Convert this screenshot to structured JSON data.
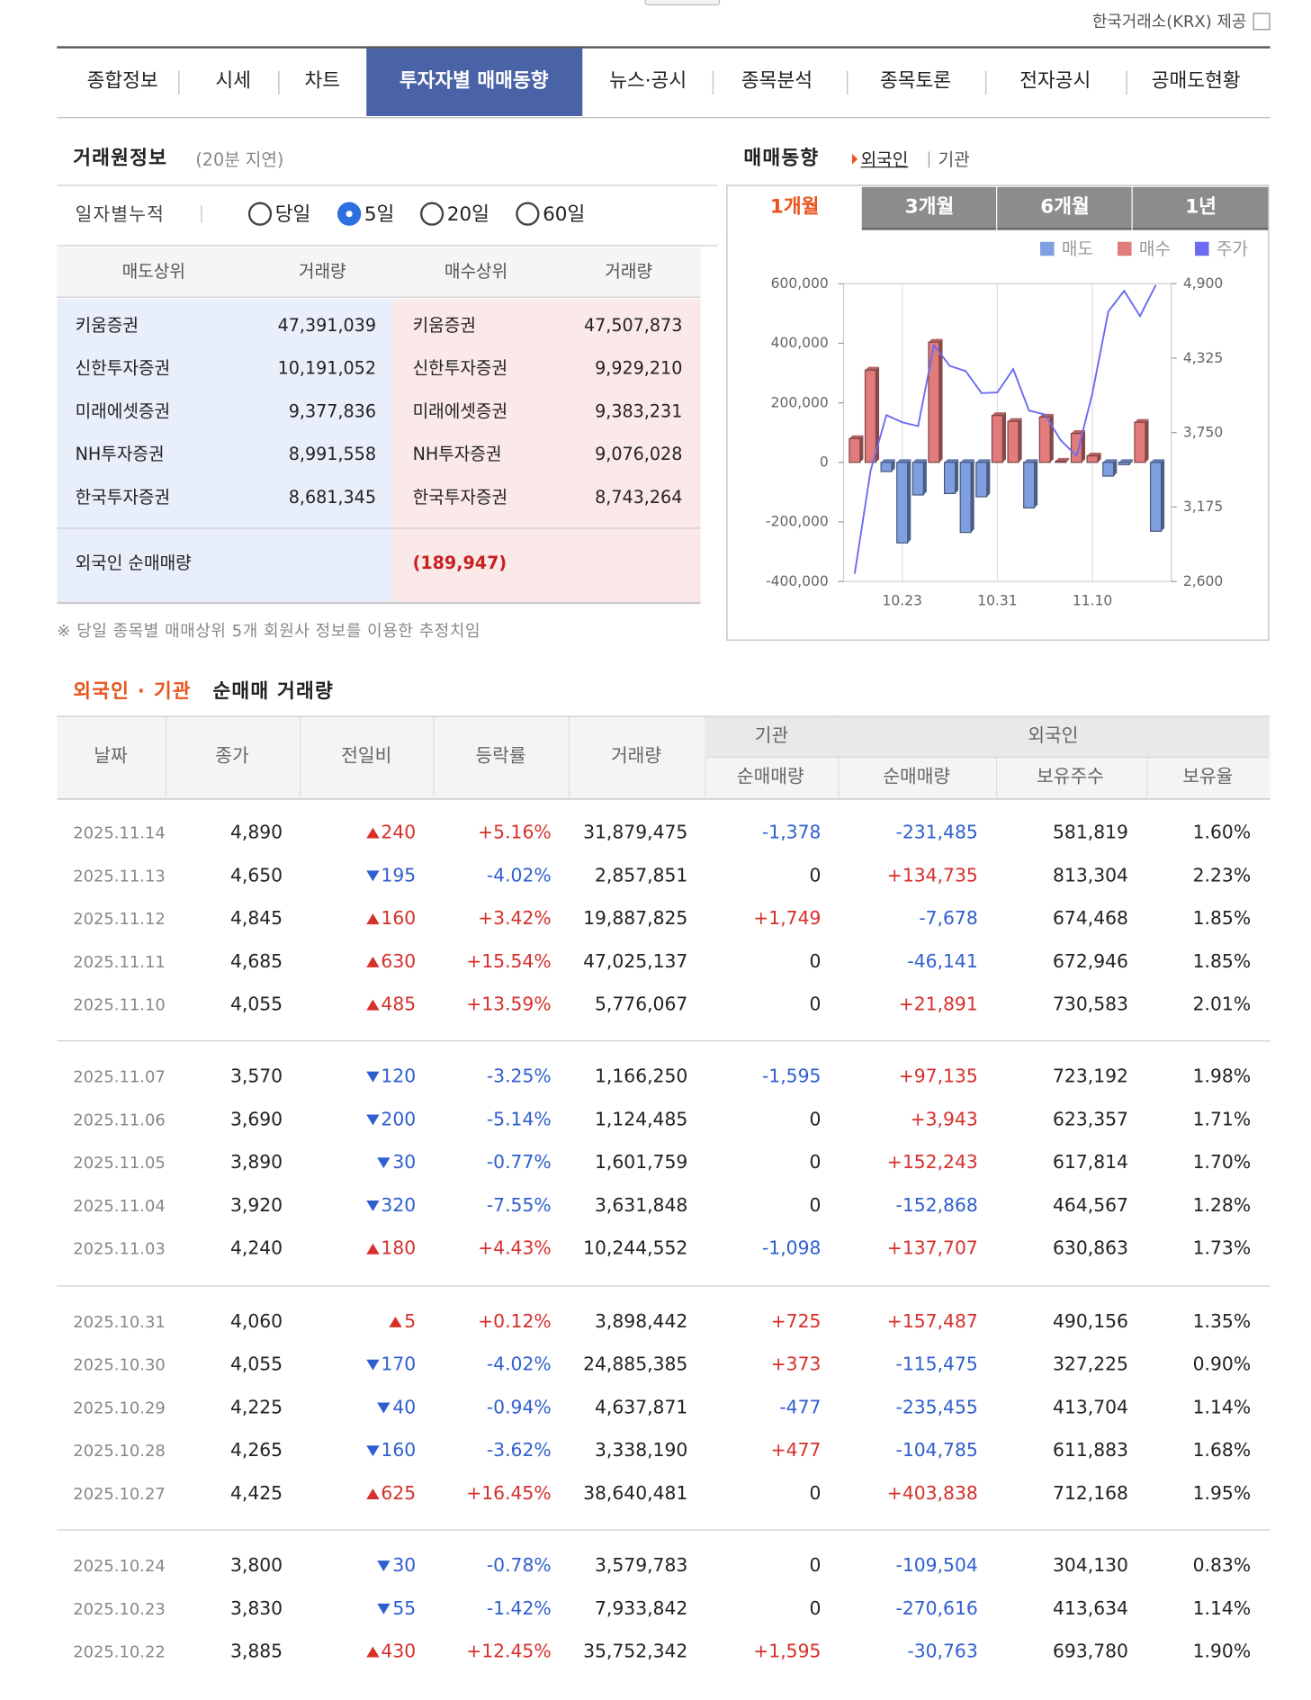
{
  "provider": "한국거래소(KRX) 제공",
  "tabs": [
    "종합정보",
    "시세",
    "차트",
    "투자자별 매매동향",
    "뉴스·공시",
    "종목분석",
    "종목토론",
    "전자공시",
    "공매도현황"
  ],
  "active_tab": 3,
  "trader_info": {
    "title": "거래원정보",
    "delay": "(20분 지연)",
    "filter_label": "일자별누적",
    "options": [
      "당일",
      "5일",
      "20일",
      "60일"
    ],
    "selected_option": 1,
    "headers": [
      "매도상위",
      "거래량",
      "매수상위",
      "거래량"
    ],
    "rows": [
      [
        "키움증권",
        "47,391,039",
        "키움증권",
        "47,507,873"
      ],
      [
        "신한투자증권",
        "10,191,052",
        "신한투자증권",
        "9,929,210"
      ],
      [
        "미래에셋증권",
        "9,377,836",
        "미래에셋증권",
        "9,383,231"
      ],
      [
        "NH투자증권",
        "8,991,558",
        "NH투자증권",
        "9,076,028"
      ],
      [
        "한국투자증권",
        "8,681,345",
        "한국투자증권",
        "8,743,264"
      ]
    ],
    "foreign_label": "외국인 순매매량",
    "foreign_value": "(189,947)",
    "note": "※ 당일 종목별 매매상위 5개 회원사 정보를 이용한 추정치임"
  },
  "trend": {
    "title": "매매동향",
    "links": [
      "외국인",
      "기관"
    ],
    "active_link": 0,
    "periods": [
      "1개월",
      "3개월",
      "6개월",
      "1년"
    ],
    "active_period": 0,
    "chart_data": {
      "type": "bar",
      "categories": [
        null,
        null,
        null,
        "10.23",
        null,
        null,
        null,
        null,
        null,
        "10.31",
        null,
        null,
        null,
        null,
        null,
        "11.10",
        null,
        null,
        null,
        null
      ],
      "series": [
        {
          "name": "매도",
          "color": "#7f9fe0",
          "values": [
            null,
            null,
            -30763,
            -270616,
            -109504,
            null,
            -104785,
            -235455,
            -115475,
            null,
            null,
            -152868,
            null,
            null,
            null,
            null,
            -46141,
            -7678,
            null,
            -231485
          ]
        },
        {
          "name": "매수",
          "color": "#e27b7b",
          "values": [
            80000,
            310000,
            null,
            null,
            null,
            403838,
            null,
            null,
            null,
            157487,
            137707,
            null,
            152243,
            3943,
            97135,
            21891,
            null,
            null,
            134735,
            null
          ]
        },
        {
          "name": "주가",
          "color": "#6b6bf2",
          "axis": "y2",
          "values": [
            2660,
            3455,
            3885,
            3830,
            3800,
            4425,
            4265,
            4225,
            4055,
            4060,
            4240,
            3920,
            3890,
            3690,
            3570,
            4055,
            4685,
            4845,
            4650,
            4890
          ]
        }
      ],
      "ylim": [
        -400000,
        600000
      ],
      "yticks": [
        {
          "value": -400000,
          "label": "-400,000"
        },
        {
          "value": -200000,
          "label": "-200,000"
        },
        0,
        {
          "value": 200000,
          "label": "200,000"
        },
        {
          "value": 400000,
          "label": "400,000"
        },
        {
          "value": 600000,
          "label": "600,000"
        }
      ],
      "y2lim": [
        2600,
        4900
      ],
      "y2ticks": [
        {
          "value": 2600,
          "label": "2,600"
        },
        {
          "value": 3175,
          "label": "3,175"
        },
        {
          "value": 3750,
          "label": "3,750"
        },
        {
          "value": 4325,
          "label": "4,325"
        },
        {
          "value": 4900,
          "label": "4,900"
        }
      ],
      "grid": true,
      "legend": "top-right"
    }
  },
  "net_table": {
    "title_highlight": "외국인 · 기관",
    "title_rest": "순매매 거래량",
    "group_headers": [
      "기관",
      "외국인"
    ],
    "headers": [
      "날짜",
      "종가",
      "전일비",
      "등락률",
      "거래량",
      "순매매량",
      "순매매량",
      "보유주수",
      "보유율"
    ],
    "rows": [
      [
        "2025.11.14",
        "4,890",
        "240",
        "+5.16%",
        "31,879,475",
        "-1,378",
        "-231,485",
        "581,819",
        "1.60%"
      ],
      [
        "2025.11.13",
        "4,650",
        "195",
        "-4.02%",
        "2,857,851",
        "0",
        "+134,735",
        "813,304",
        "2.23%"
      ],
      [
        "2025.11.12",
        "4,845",
        "160",
        "+3.42%",
        "19,887,825",
        "+1,749",
        "-7,678",
        "674,468",
        "1.85%"
      ],
      [
        "2025.11.11",
        "4,685",
        "630",
        "+15.54%",
        "47,025,137",
        "0",
        "-46,141",
        "672,946",
        "1.85%"
      ],
      [
        "2025.11.10",
        "4,055",
        "485",
        "+13.59%",
        "5,776,067",
        "0",
        "+21,891",
        "730,583",
        "2.01%"
      ],
      [
        "2025.11.07",
        "3,570",
        "120",
        "-3.25%",
        "1,166,250",
        "-1,595",
        "+97,135",
        "723,192",
        "1.98%"
      ],
      [
        "2025.11.06",
        "3,690",
        "200",
        "-5.14%",
        "1,124,485",
        "0",
        "+3,943",
        "623,357",
        "1.71%"
      ],
      [
        "2025.11.05",
        "3,890",
        "30",
        "-0.77%",
        "1,601,759",
        "0",
        "+152,243",
        "617,814",
        "1.70%"
      ],
      [
        "2025.11.04",
        "3,920",
        "320",
        "-7.55%",
        "3,631,848",
        "0",
        "-152,868",
        "464,567",
        "1.28%"
      ],
      [
        "2025.11.03",
        "4,240",
        "180",
        "+4.43%",
        "10,244,552",
        "-1,098",
        "+137,707",
        "630,863",
        "1.73%"
      ],
      [
        "2025.10.31",
        "4,060",
        "5",
        "+0.12%",
        "3,898,442",
        "+725",
        "+157,487",
        "490,156",
        "1.35%"
      ],
      [
        "2025.10.30",
        "4,055",
        "170",
        "-4.02%",
        "24,885,385",
        "+373",
        "-115,475",
        "327,225",
        "0.90%"
      ],
      [
        "2025.10.29",
        "4,225",
        "40",
        "-0.94%",
        "4,637,871",
        "-477",
        "-235,455",
        "413,704",
        "1.14%"
      ],
      [
        "2025.10.28",
        "4,265",
        "160",
        "-3.62%",
        "3,338,190",
        "+477",
        "-104,785",
        "611,883",
        "1.68%"
      ],
      [
        "2025.10.27",
        "4,425",
        "625",
        "+16.45%",
        "38,640,481",
        "0",
        "+403,838",
        "712,168",
        "1.95%"
      ],
      [
        "2025.10.24",
        "3,800",
        "30",
        "-0.78%",
        "3,579,783",
        "0",
        "-109,504",
        "304,130",
        "0.83%"
      ],
      [
        "2025.10.23",
        "3,830",
        "55",
        "-1.42%",
        "7,933,842",
        "0",
        "-270,616",
        "413,634",
        "1.14%"
      ],
      [
        "2025.10.22",
        "3,885",
        "430",
        "+12.45%",
        "35,752,342",
        "+1,595",
        "-30,763",
        "693,780",
        "1.90%"
      ]
    ],
    "directions": [
      "up",
      "down",
      "up",
      "up",
      "up",
      "down",
      "down",
      "down",
      "down",
      "up",
      "up",
      "down",
      "down",
      "down",
      "up",
      "down",
      "down",
      "up"
    ]
  }
}
